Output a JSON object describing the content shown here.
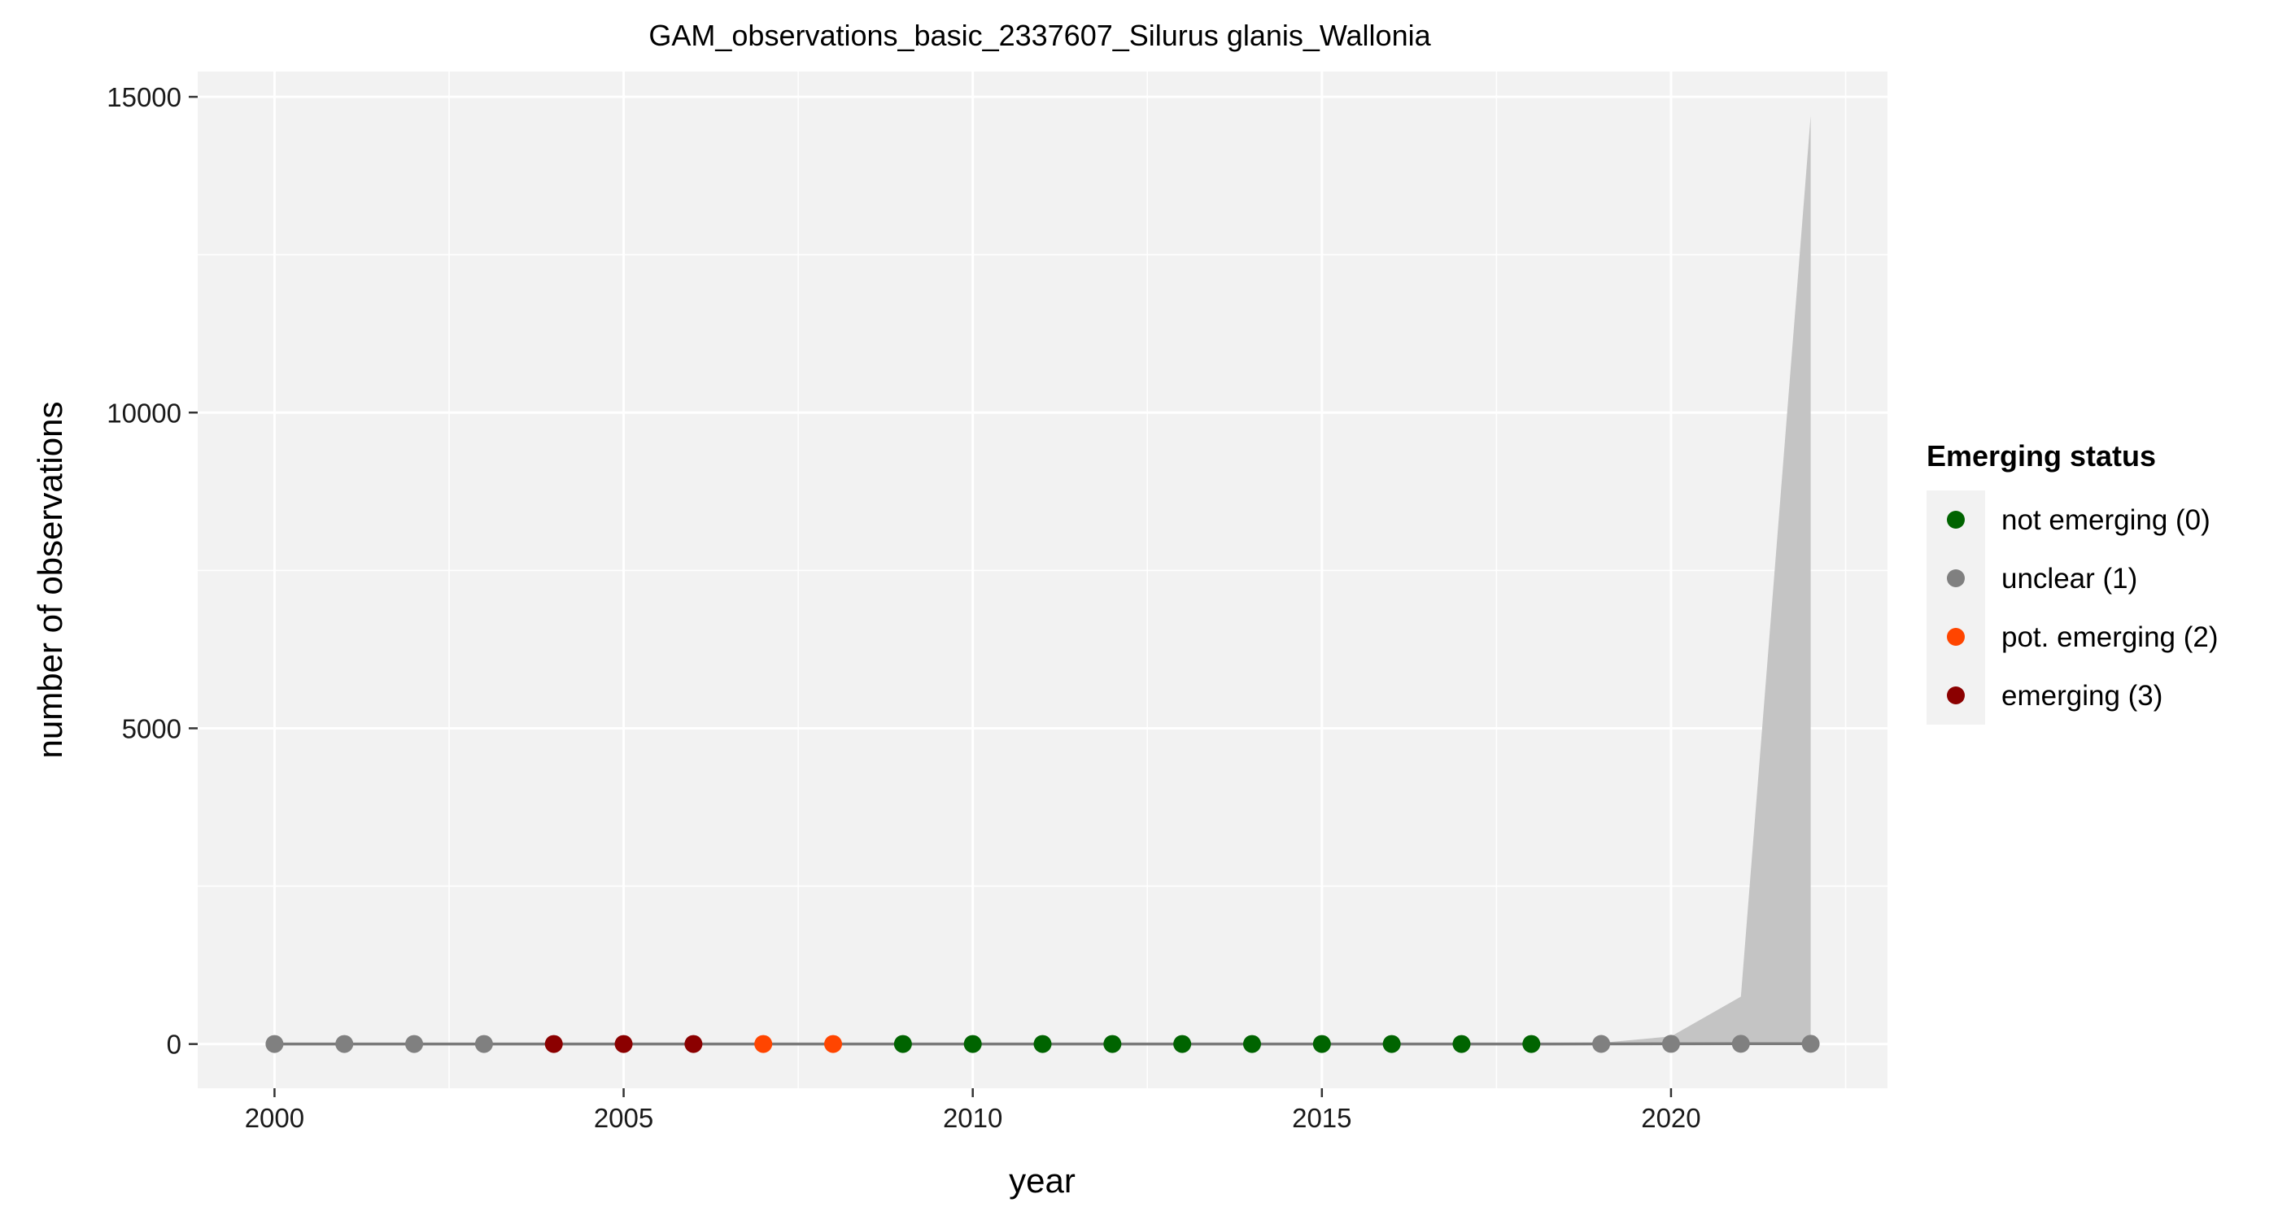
{
  "chart_data": {
    "type": "line",
    "title": "GAM_observations_basic_2337607_Silurus glanis_Wallonia",
    "xlabel": "year",
    "ylabel": "number of observations",
    "xlim": [
      1998.9,
      2023.1
    ],
    "ylim": [
      -700,
      15400
    ],
    "x_ticks": [
      2000,
      2005,
      2010,
      2015,
      2020
    ],
    "y_ticks": [
      0,
      5000,
      10000,
      15000
    ],
    "x_tick_labels": [
      "2000",
      "2005",
      "2010",
      "2015",
      "2020"
    ],
    "y_tick_labels": [
      "0",
      "5000",
      "10000",
      "15000"
    ],
    "grid": true,
    "legend_position": "right",
    "colors": {
      "panel_background": "#f2f2f2",
      "grid": "#ffffff",
      "line": "#7a7a7a",
      "ribbon": "#c4c4c4"
    },
    "fit": {
      "years": [
        2000,
        2001,
        2002,
        2003,
        2004,
        2005,
        2006,
        2007,
        2008,
        2009,
        2010,
        2011,
        2012,
        2013,
        2014,
        2015,
        2016,
        2017,
        2018,
        2019,
        2020,
        2021,
        2022
      ],
      "values": [
        1,
        1,
        1,
        1,
        1,
        1,
        1,
        1,
        1,
        1,
        1,
        1,
        1,
        1,
        1,
        1,
        1,
        1,
        1,
        2,
        3,
        4,
        4
      ],
      "lower": [
        0,
        0,
        0,
        0,
        0,
        0,
        0,
        0,
        0,
        0,
        0,
        0,
        0,
        0,
        0,
        0,
        0,
        0,
        0,
        0,
        0,
        0,
        0
      ],
      "upper": [
        3,
        3,
        3,
        3,
        3,
        3,
        3,
        3,
        3,
        3,
        3,
        3,
        3,
        3,
        3,
        3,
        3,
        3,
        3,
        20,
        120,
        750,
        14700
      ]
    },
    "points": [
      {
        "x": 2000,
        "y": 1,
        "status": 1
      },
      {
        "x": 2001,
        "y": 1,
        "status": 1
      },
      {
        "x": 2002,
        "y": 1,
        "status": 1
      },
      {
        "x": 2003,
        "y": 1,
        "status": 1
      },
      {
        "x": 2004,
        "y": 1,
        "status": 3
      },
      {
        "x": 2005,
        "y": 1,
        "status": 3
      },
      {
        "x": 2006,
        "y": 1,
        "status": 3
      },
      {
        "x": 2007,
        "y": 1,
        "status": 2
      },
      {
        "x": 2008,
        "y": 1,
        "status": 2
      },
      {
        "x": 2009,
        "y": 1,
        "status": 0
      },
      {
        "x": 2010,
        "y": 1,
        "status": 0
      },
      {
        "x": 2011,
        "y": 1,
        "status": 0
      },
      {
        "x": 2012,
        "y": 1,
        "status": 0
      },
      {
        "x": 2013,
        "y": 1,
        "status": 0
      },
      {
        "x": 2014,
        "y": 1,
        "status": 0
      },
      {
        "x": 2015,
        "y": 1,
        "status": 0
      },
      {
        "x": 2016,
        "y": 1,
        "status": 0
      },
      {
        "x": 2017,
        "y": 1,
        "status": 0
      },
      {
        "x": 2018,
        "y": 1,
        "status": 0
      },
      {
        "x": 2019,
        "y": 2,
        "status": 1
      },
      {
        "x": 2020,
        "y": 3,
        "status": 1
      },
      {
        "x": 2021,
        "y": 4,
        "status": 1
      },
      {
        "x": 2022,
        "y": 4,
        "status": 1
      }
    ],
    "legend": {
      "title": "Emerging status",
      "items": [
        {
          "label": "not emerging (0)",
          "status": 0,
          "color": "#006400"
        },
        {
          "label": "unclear (1)",
          "status": 1,
          "color": "#808080"
        },
        {
          "label": "pot. emerging (2)",
          "status": 2,
          "color": "#ff4500"
        },
        {
          "label": "emerging (3)",
          "status": 3,
          "color": "#8b0000"
        }
      ]
    }
  }
}
